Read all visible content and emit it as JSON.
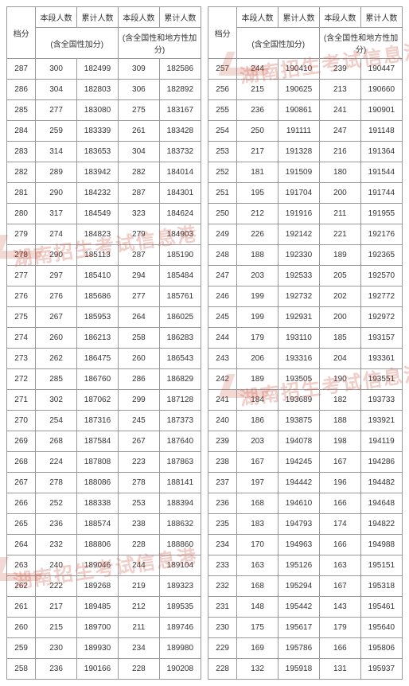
{
  "headers": {
    "score": "档分",
    "seg": "本段人数",
    "cum": "累计人数",
    "note1": "(含全国性加分)",
    "note2": "(含全国性和地方性加分)"
  },
  "watermark": "湖南招生考试信息港",
  "watermark_color": "rgba(200,80,60,0.28)",
  "table_style": {
    "font_size": 10,
    "border_color": "#999",
    "text_color": "#333",
    "background": "#ffffff"
  },
  "left": [
    {
      "s": 287,
      "a": 300,
      "b": 182499,
      "c": 309,
      "d": 182586
    },
    {
      "s": 286,
      "a": 304,
      "b": 182803,
      "c": 306,
      "d": 182892
    },
    {
      "s": 285,
      "a": 277,
      "b": 183080,
      "c": 275,
      "d": 183167
    },
    {
      "s": 284,
      "a": 259,
      "b": 183339,
      "c": 261,
      "d": 183428
    },
    {
      "s": 283,
      "a": 314,
      "b": 183653,
      "c": 304,
      "d": 183732
    },
    {
      "s": 282,
      "a": 289,
      "b": 183942,
      "c": 282,
      "d": 184014
    },
    {
      "s": 281,
      "a": 290,
      "b": 184232,
      "c": 287,
      "d": 184301
    },
    {
      "s": 280,
      "a": 317,
      "b": 184549,
      "c": 323,
      "d": 184624
    },
    {
      "s": 279,
      "a": 274,
      "b": 184823,
      "c": 279,
      "d": 184903
    },
    {
      "s": 278,
      "a": 290,
      "b": 185113,
      "c": 287,
      "d": 185190
    },
    {
      "s": 277,
      "a": 297,
      "b": 185410,
      "c": 294,
      "d": 185484
    },
    {
      "s": 276,
      "a": 276,
      "b": 185686,
      "c": 277,
      "d": 185761
    },
    {
      "s": 275,
      "a": 267,
      "b": 185953,
      "c": 264,
      "d": 186025
    },
    {
      "s": 274,
      "a": 260,
      "b": 186213,
      "c": 258,
      "d": 186283
    },
    {
      "s": 273,
      "a": 262,
      "b": 186475,
      "c": 260,
      "d": 186543
    },
    {
      "s": 272,
      "a": 285,
      "b": 186760,
      "c": 286,
      "d": 186829
    },
    {
      "s": 271,
      "a": 302,
      "b": 187062,
      "c": 299,
      "d": 187128
    },
    {
      "s": 270,
      "a": 254,
      "b": 187316,
      "c": 245,
      "d": 187373
    },
    {
      "s": 269,
      "a": 268,
      "b": 187584,
      "c": 267,
      "d": 187640
    },
    {
      "s": 268,
      "a": 224,
      "b": 187808,
      "c": 223,
      "d": 187863
    },
    {
      "s": 267,
      "a": 278,
      "b": 188086,
      "c": 278,
      "d": 188141
    },
    {
      "s": 266,
      "a": 252,
      "b": 188338,
      "c": 253,
      "d": 188394
    },
    {
      "s": 265,
      "a": 236,
      "b": 188574,
      "c": 238,
      "d": 188632
    },
    {
      "s": 264,
      "a": 232,
      "b": 188806,
      "c": 228,
      "d": 188860
    },
    {
      "s": 263,
      "a": 240,
      "b": 189046,
      "c": 244,
      "d": 189104
    },
    {
      "s": 262,
      "a": 222,
      "b": 189268,
      "c": 219,
      "d": 189323
    },
    {
      "s": 261,
      "a": 217,
      "b": 189485,
      "c": 212,
      "d": 189535
    },
    {
      "s": 260,
      "a": 215,
      "b": 189700,
      "c": 211,
      "d": 189746
    },
    {
      "s": 259,
      "a": 230,
      "b": 189930,
      "c": 234,
      "d": 189980
    },
    {
      "s": 258,
      "a": 236,
      "b": 190166,
      "c": 228,
      "d": 190208
    }
  ],
  "right": [
    {
      "s": 257,
      "a": 244,
      "b": 190410,
      "c": 239,
      "d": 190447
    },
    {
      "s": 256,
      "a": 215,
      "b": 190625,
      "c": 213,
      "d": 190660
    },
    {
      "s": 255,
      "a": 236,
      "b": 190861,
      "c": 241,
      "d": 190901
    },
    {
      "s": 254,
      "a": 250,
      "b": 191111,
      "c": 247,
      "d": 191148
    },
    {
      "s": 253,
      "a": 217,
      "b": 191328,
      "c": 216,
      "d": 191364
    },
    {
      "s": 252,
      "a": 181,
      "b": 191509,
      "c": 180,
      "d": 191544
    },
    {
      "s": 251,
      "a": 195,
      "b": 191704,
      "c": 200,
      "d": 191744
    },
    {
      "s": 250,
      "a": 212,
      "b": 191916,
      "c": 211,
      "d": 191955
    },
    {
      "s": 249,
      "a": 226,
      "b": 192142,
      "c": 221,
      "d": 192176
    },
    {
      "s": 248,
      "a": 188,
      "b": 192330,
      "c": 189,
      "d": 192365
    },
    {
      "s": 247,
      "a": 203,
      "b": 192533,
      "c": 205,
      "d": 192570
    },
    {
      "s": 246,
      "a": 199,
      "b": 192732,
      "c": 202,
      "d": 192772
    },
    {
      "s": 245,
      "a": 199,
      "b": 192931,
      "c": 200,
      "d": 192972
    },
    {
      "s": 244,
      "a": 179,
      "b": 193110,
      "c": 185,
      "d": 193157
    },
    {
      "s": 243,
      "a": 206,
      "b": 193316,
      "c": 204,
      "d": 193361
    },
    {
      "s": 242,
      "a": 189,
      "b": 193505,
      "c": 190,
      "d": 193551
    },
    {
      "s": 241,
      "a": 184,
      "b": 193689,
      "c": 182,
      "d": 193733
    },
    {
      "s": 240,
      "a": 186,
      "b": 193875,
      "c": 188,
      "d": 193921
    },
    {
      "s": 239,
      "a": 203,
      "b": 194078,
      "c": 198,
      "d": 194119
    },
    {
      "s": 238,
      "a": 167,
      "b": 194245,
      "c": 167,
      "d": 194286
    },
    {
      "s": 237,
      "a": 197,
      "b": 194442,
      "c": 196,
      "d": 194482
    },
    {
      "s": 236,
      "a": 168,
      "b": 194610,
      "c": 166,
      "d": 194648
    },
    {
      "s": 235,
      "a": 183,
      "b": 194793,
      "c": 174,
      "d": 194822
    },
    {
      "s": 234,
      "a": 170,
      "b": 194963,
      "c": 166,
      "d": 194988
    },
    {
      "s": 233,
      "a": 163,
      "b": 195126,
      "c": 163,
      "d": 195151
    },
    {
      "s": 232,
      "a": 168,
      "b": 195294,
      "c": 167,
      "d": 195318
    },
    {
      "s": 231,
      "a": 148,
      "b": 195442,
      "c": 143,
      "d": 195461
    },
    {
      "s": 230,
      "a": 175,
      "b": 195617,
      "c": 179,
      "d": 195640
    },
    {
      "s": 229,
      "a": 169,
      "b": 195786,
      "c": 166,
      "d": 195806
    },
    {
      "s": 228,
      "a": 132,
      "b": 195918,
      "c": 131,
      "d": 195937
    }
  ]
}
